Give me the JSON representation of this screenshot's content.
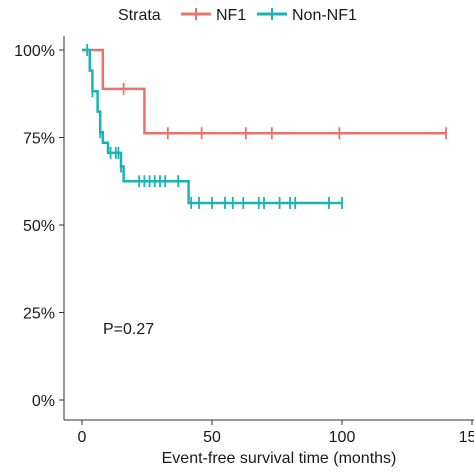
{
  "chart_data": {
    "type": "line",
    "subtype": "kaplan-meier",
    "title": "",
    "xlabel": "Event-free survival time (months)",
    "ylabel": "",
    "xlim": [
      0,
      150
    ],
    "ylim": [
      0,
      1
    ],
    "x_ticks": [
      0,
      50,
      100,
      150
    ],
    "x_tick_labels": [
      "0",
      "50",
      "100",
      "150"
    ],
    "y_ticks": [
      0,
      0.25,
      0.5,
      0.75,
      1.0
    ],
    "y_tick_labels": [
      "0%",
      "25%",
      "50%",
      "75%",
      "100%"
    ],
    "grid": false,
    "legend": {
      "title": "Strata",
      "placement": "top",
      "entries": [
        "NF1",
        "Non-NF1"
      ]
    },
    "annotation": "P=0.27",
    "series": [
      {
        "name": "NF1",
        "color": "#E8736C",
        "steps": [
          {
            "x": 0,
            "y": 1.0
          },
          {
            "x": 8,
            "y": 0.889
          },
          {
            "x": 24,
            "y": 0.762
          },
          {
            "x": 140,
            "y": 0.762
          }
        ],
        "censor_times": [
          16,
          33,
          46,
          63,
          73,
          99,
          140
        ]
      },
      {
        "name": "Non-NF1",
        "color": "#1AB3B3",
        "steps": [
          {
            "x": 0,
            "y": 1.0
          },
          {
            "x": 3,
            "y": 0.941
          },
          {
            "x": 4,
            "y": 0.882
          },
          {
            "x": 6,
            "y": 0.824
          },
          {
            "x": 7,
            "y": 0.765
          },
          {
            "x": 8,
            "y": 0.735
          },
          {
            "x": 10,
            "y": 0.706
          },
          {
            "x": 15,
            "y": 0.667
          },
          {
            "x": 16,
            "y": 0.625
          },
          {
            "x": 41,
            "y": 0.563
          },
          {
            "x": 100,
            "y": 0.563
          }
        ],
        "censor_times": [
          2,
          4,
          7,
          11,
          13,
          14,
          15,
          22,
          24,
          26,
          28,
          30,
          32,
          37,
          42,
          45,
          50,
          55,
          58,
          62,
          68,
          70,
          76,
          80,
          82,
          95,
          100
        ]
      }
    ]
  }
}
